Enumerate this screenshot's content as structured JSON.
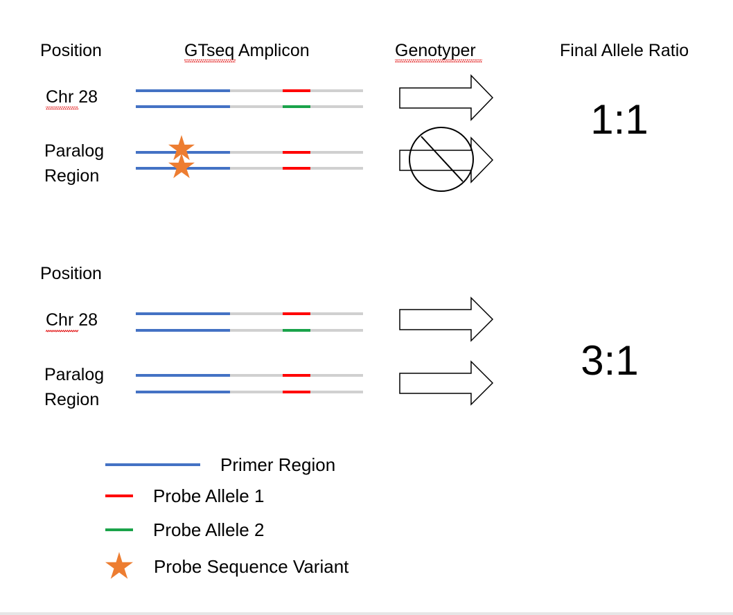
{
  "headers": {
    "position": "Position",
    "amplicon": "GTseq Amplicon",
    "genotyper": "Genotyper",
    "final_ratio": "Final Allele Ratio"
  },
  "scenario1": {
    "row1_label": "Chr 28",
    "row2_label_line1": "Paralog",
    "row2_label_line2": "Region",
    "ratio": "1:1"
  },
  "scenario2": {
    "position_header": "Position",
    "row1_label": "Chr 28",
    "row2_label_line1": "Paralog",
    "row2_label_line2": "Region",
    "ratio": "3:1"
  },
  "legend": {
    "primer": "Primer Region",
    "allele1": "Probe Allele 1",
    "allele2": "Probe Allele 2",
    "variant": "Probe Sequence Variant"
  },
  "colors": {
    "primer": "#4472c4",
    "allele1": "#ff0000",
    "allele2": "#1aa34a",
    "amplicon": "#d0d0d0",
    "variant_star": "#ed7d31",
    "spellcheck": "#e00000"
  }
}
